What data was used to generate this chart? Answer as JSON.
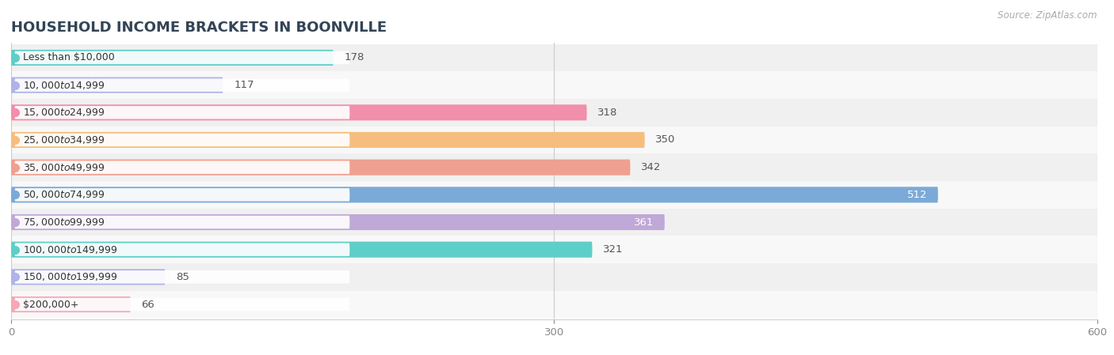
{
  "title": "HOUSEHOLD INCOME BRACKETS IN BOONVILLE",
  "source_text": "Source: ZipAtlas.com",
  "categories": [
    "Less than $10,000",
    "$10,000 to $14,999",
    "$15,000 to $24,999",
    "$25,000 to $34,999",
    "$35,000 to $49,999",
    "$50,000 to $74,999",
    "$75,000 to $99,999",
    "$100,000 to $149,999",
    "$150,000 to $199,999",
    "$200,000+"
  ],
  "values": [
    178,
    117,
    318,
    350,
    342,
    512,
    361,
    321,
    85,
    66
  ],
  "bar_colors": [
    "#5ecec8",
    "#b0b3e8",
    "#f28faa",
    "#f5be7e",
    "#f0a090",
    "#7baad8",
    "#c0a8d8",
    "#5ecec8",
    "#b0b3e8",
    "#f5a8b8"
  ],
  "bar_label_colors": [
    "#444444",
    "#444444",
    "#444444",
    "#444444",
    "#444444",
    "#ffffff",
    "#ffffff",
    "#444444",
    "#444444",
    "#444444"
  ],
  "row_bg_colors": [
    "#f0f0f0",
    "#f8f8f8"
  ],
  "xlim": [
    0,
    600
  ],
  "xticks": [
    0,
    300,
    600
  ],
  "background_color": "#ffffff",
  "title_fontsize": 13,
  "label_fontsize": 9.5,
  "tick_fontsize": 9.5,
  "bar_height": 0.58
}
